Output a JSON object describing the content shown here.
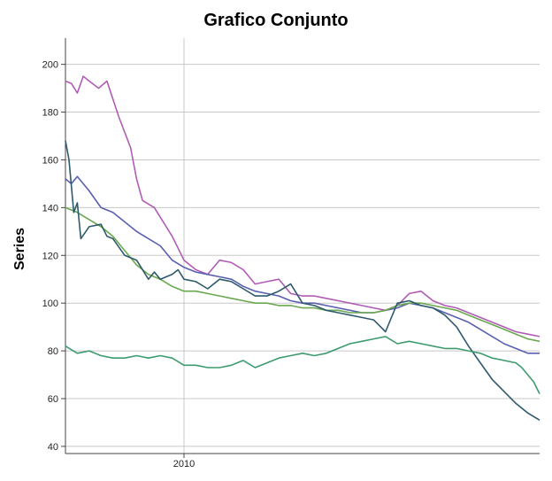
{
  "chart_data": {
    "type": "line",
    "title": "Grafico Conjunto",
    "xlabel": "",
    "ylabel": "Series",
    "ylim": [
      37,
      211
    ],
    "xlim": [
      2009.0,
      2013.0
    ],
    "yticks": [
      40,
      60,
      80,
      100,
      120,
      140,
      160,
      180,
      200
    ],
    "xticks": [
      {
        "value": 2010.0,
        "label": "2010"
      }
    ],
    "grid": "horizontal and vertical",
    "legend": "none",
    "series": [
      {
        "color": "#b05cb5",
        "x": [
          2009.0,
          2009.05,
          2009.1,
          2009.15,
          2009.2,
          2009.28,
          2009.35,
          2009.45,
          2009.55,
          2009.6,
          2009.65,
          2009.75,
          2009.8,
          2009.9,
          2010.0,
          2010.1,
          2010.2,
          2010.3,
          2010.4,
          2010.5,
          2010.6,
          2010.7,
          2010.8,
          2010.9,
          2011.0,
          2011.1,
          2011.2,
          2011.3,
          2011.4,
          2011.5,
          2011.6,
          2011.7,
          2011.8,
          2011.9,
          2012.0,
          2012.1,
          2012.2,
          2012.3,
          2012.4,
          2012.5,
          2012.6,
          2012.7,
          2012.8,
          2012.9,
          2013.0
        ],
        "values": [
          193,
          192,
          188,
          195,
          193,
          190,
          193,
          178,
          165,
          152,
          143,
          140,
          136,
          128,
          118,
          114,
          112,
          118,
          117,
          114,
          108,
          109,
          110,
          104,
          103,
          103,
          102,
          101,
          100,
          99,
          98,
          97,
          99,
          104,
          105,
          101,
          99,
          98,
          96,
          94,
          92,
          90,
          88,
          87,
          86
        ]
      },
      {
        "color": "#5a5fb0",
        "x": [
          2009.0,
          2009.05,
          2009.1,
          2009.2,
          2009.3,
          2009.4,
          2009.5,
          2009.6,
          2009.7,
          2009.8,
          2009.9,
          2010.0,
          2010.1,
          2010.2,
          2010.3,
          2010.4,
          2010.5,
          2010.6,
          2010.7,
          2010.8,
          2010.9,
          2011.0,
          2011.1,
          2011.2,
          2011.3,
          2011.4,
          2011.5,
          2011.6,
          2011.7,
          2011.8,
          2011.9,
          2012.0,
          2012.1,
          2012.2,
          2012.3,
          2012.4,
          2012.5,
          2012.6,
          2012.7,
          2012.8,
          2012.9,
          2013.0
        ],
        "values": [
          152,
          150,
          153,
          147,
          140,
          138,
          134,
          130,
          127,
          124,
          118,
          115,
          113,
          112,
          111,
          110,
          107,
          105,
          104,
          103,
          101,
          100,
          100,
          99,
          98,
          97,
          96,
          96,
          97,
          98,
          100,
          99,
          98,
          96,
          94,
          92,
          89,
          86,
          83,
          81,
          79,
          79
        ]
      },
      {
        "color": "#6aa84f",
        "x": [
          2009.0,
          2009.1,
          2009.2,
          2009.3,
          2009.4,
          2009.5,
          2009.6,
          2009.7,
          2009.8,
          2009.9,
          2010.0,
          2010.1,
          2010.2,
          2010.3,
          2010.4,
          2010.5,
          2010.6,
          2010.7,
          2010.8,
          2010.9,
          2011.0,
          2011.1,
          2011.2,
          2011.3,
          2011.4,
          2011.5,
          2011.6,
          2011.7,
          2011.8,
          2011.9,
          2012.0,
          2012.1,
          2012.2,
          2012.3,
          2012.4,
          2012.5,
          2012.6,
          2012.7,
          2012.8,
          2012.9,
          2013.0
        ],
        "values": [
          140,
          138,
          135,
          132,
          128,
          122,
          116,
          112,
          110,
          107,
          105,
          105,
          104,
          103,
          102,
          101,
          100,
          100,
          99,
          99,
          98,
          98,
          97,
          97,
          96,
          96,
          96,
          97,
          99,
          100,
          100,
          99,
          98,
          97,
          95,
          93,
          91,
          89,
          87,
          85,
          84
        ]
      },
      {
        "color": "#2e5a6e",
        "x": [
          2009.0,
          2009.03,
          2009.07,
          2009.1,
          2009.13,
          2009.2,
          2009.3,
          2009.35,
          2009.4,
          2009.5,
          2009.6,
          2009.7,
          2009.75,
          2009.8,
          2009.9,
          2009.95,
          2010.0,
          2010.1,
          2010.2,
          2010.3,
          2010.4,
          2010.5,
          2010.6,
          2010.7,
          2010.8,
          2010.9,
          2011.0,
          2011.1,
          2011.2,
          2011.3,
          2011.4,
          2011.5,
          2011.6,
          2011.7,
          2011.8,
          2011.9,
          2012.0,
          2012.1,
          2012.2,
          2012.3,
          2012.4,
          2012.5,
          2012.6,
          2012.7,
          2012.8,
          2012.9,
          2013.0
        ],
        "values": [
          168,
          160,
          138,
          142,
          127,
          132,
          133,
          128,
          127,
          120,
          118,
          110,
          113,
          110,
          112,
          114,
          110,
          109,
          106,
          110,
          109,
          106,
          103,
          103,
          105,
          108,
          100,
          99,
          97,
          96,
          95,
          94,
          93,
          88,
          100,
          101,
          99,
          98,
          95,
          90,
          82,
          75,
          68,
          63,
          58,
          54,
          51
        ]
      },
      {
        "color": "#3d9b6e",
        "x": [
          2009.0,
          2009.1,
          2009.2,
          2009.3,
          2009.4,
          2009.5,
          2009.6,
          2009.7,
          2009.8,
          2009.9,
          2010.0,
          2010.1,
          2010.2,
          2010.3,
          2010.4,
          2010.5,
          2010.6,
          2010.7,
          2010.8,
          2010.9,
          2011.0,
          2011.1,
          2011.2,
          2011.3,
          2011.4,
          2011.5,
          2011.6,
          2011.7,
          2011.8,
          2011.9,
          2012.0,
          2012.1,
          2012.2,
          2012.3,
          2012.4,
          2012.5,
          2012.6,
          2012.7,
          2012.8,
          2012.85,
          2012.9,
          2012.95,
          2013.0
        ],
        "values": [
          82,
          79,
          80,
          78,
          77,
          77,
          78,
          77,
          78,
          77,
          74,
          74,
          73,
          73,
          74,
          76,
          73,
          75,
          77,
          78,
          79,
          78,
          79,
          81,
          83,
          84,
          85,
          86,
          83,
          84,
          83,
          82,
          81,
          81,
          80,
          79,
          77,
          76,
          75,
          73,
          70,
          67,
          62
        ]
      }
    ]
  }
}
